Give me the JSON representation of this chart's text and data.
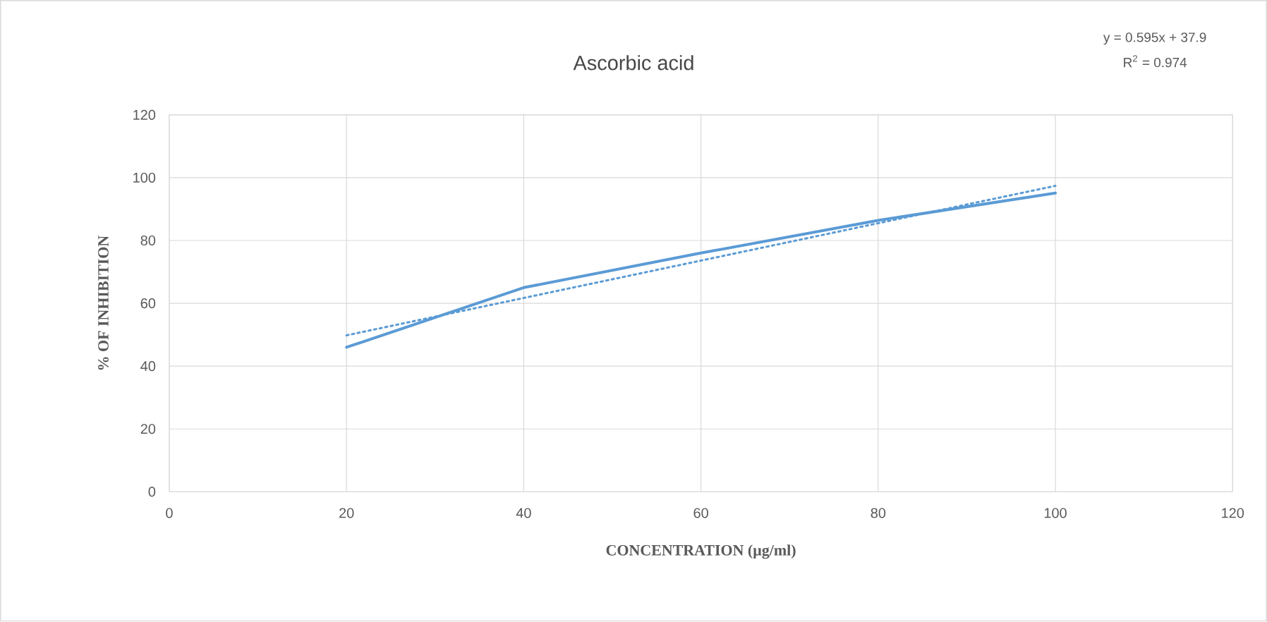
{
  "chart_data": {
    "type": "line",
    "title": "Ascorbic acid",
    "xlabel": "CONCENTRATION (µg/ml)",
    "ylabel": "% OF INHIBITION",
    "annotations": [
      "y = 0.595x + 37.9",
      "R$^{2}$ = 0.974"
    ],
    "series": [
      {
        "color": "#5b9bd5",
        "x": [
          20,
          40,
          60,
          80,
          100
        ],
        "values": [
          46,
          65,
          76,
          86.4,
          95.1
        ],
        "line_style": "solid"
      },
      {
        "type": "line",
        "color": "#5b9bd5",
        "x": [
          20,
          100
        ],
        "values": [
          49.8,
          97.4
        ],
        "line_style": "dotted"
      }
    ],
    "xlim": [
      0,
      120
    ],
    "xticks": [
      0,
      20,
      40,
      60,
      80,
      100,
      120
    ],
    "ylim": [
      0,
      120
    ],
    "yticks": [
      0,
      20,
      40,
      60,
      80,
      100,
      120
    ],
    "grid": true,
    "marker": "none"
  }
}
